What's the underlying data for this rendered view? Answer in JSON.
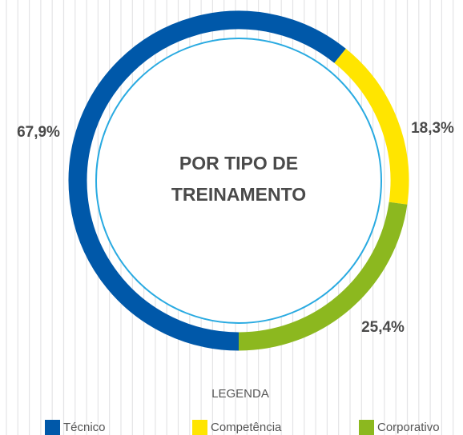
{
  "chart_data": {
    "type": "donut",
    "title": [
      "POR TIPO DE",
      "TREINAMENTO"
    ],
    "categories": [
      "Técnico",
      "Competência",
      "Corporativo"
    ],
    "values": [
      67.9,
      18.3,
      25.4
    ],
    "value_labels": [
      "67,9%",
      "18,3%",
      "25,4%"
    ],
    "colors": [
      "#0058a9",
      "#ffe500",
      "#8cb81f"
    ],
    "legend_title": "LEGENDA"
  }
}
